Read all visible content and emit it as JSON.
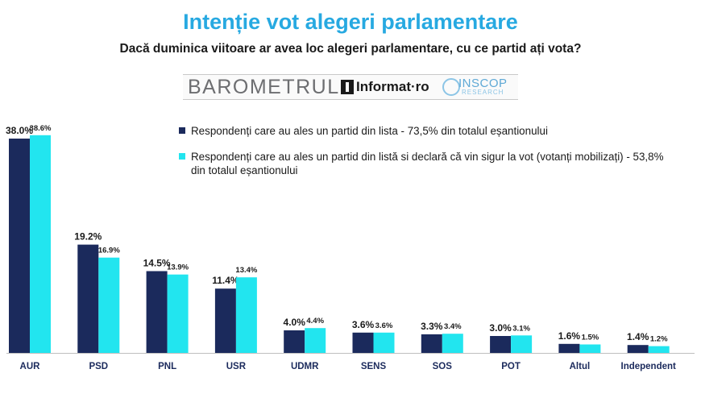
{
  "header": {
    "title": "Intenție vot alegeri parlamentare",
    "subtitle": "Dacă duminica viitoare ar avea loc alegeri parlamentare, cu ce partid ați vota?"
  },
  "logos": {
    "barometrul": "BAROMETRUL",
    "informat": "Informat·ro",
    "inscop": "INSCOP",
    "research": "RESEARCH"
  },
  "colors": {
    "series_1": "#1b2a5c",
    "series_2": "#22e5ef",
    "title": "#27a9e1"
  },
  "chart_data": {
    "type": "bar",
    "title": "",
    "xlabel": "",
    "ylabel": "",
    "ylim": [
      0,
      40
    ],
    "grid": false,
    "legend_position": "top-right",
    "categories": [
      "AUR",
      "PSD",
      "PNL",
      "USR",
      "UDMR",
      "SENS",
      "SOS",
      "POT",
      "Altul",
      "Independent"
    ],
    "series": [
      {
        "name": "Respondenți care au ales un partid din lista - 73,5% din totalul eșantionului",
        "values": [
          38.0,
          19.2,
          14.5,
          11.4,
          4.0,
          3.6,
          3.3,
          3.0,
          1.6,
          1.4
        ],
        "labels": [
          "38.0%",
          "19.2%",
          "14.5%",
          "11.4%",
          "4.0%",
          "3.6%",
          "3.3%",
          "3.0%",
          "1.6%",
          "1.4%"
        ]
      },
      {
        "name": "Respondenți care au ales un partid din listă si declară că vin sigur la vot (votanți mobilizați) - 53,8% din totalul eșantionului",
        "values": [
          38.6,
          16.9,
          13.9,
          13.4,
          4.4,
          3.6,
          3.4,
          3.1,
          1.5,
          1.2
        ],
        "labels": [
          "38.6%",
          "16.9%",
          "13.9%",
          "13.4%",
          "4.4%",
          "3.6%",
          "3.4%",
          "3.1%",
          "1.5%",
          "1.2%"
        ]
      }
    ]
  }
}
